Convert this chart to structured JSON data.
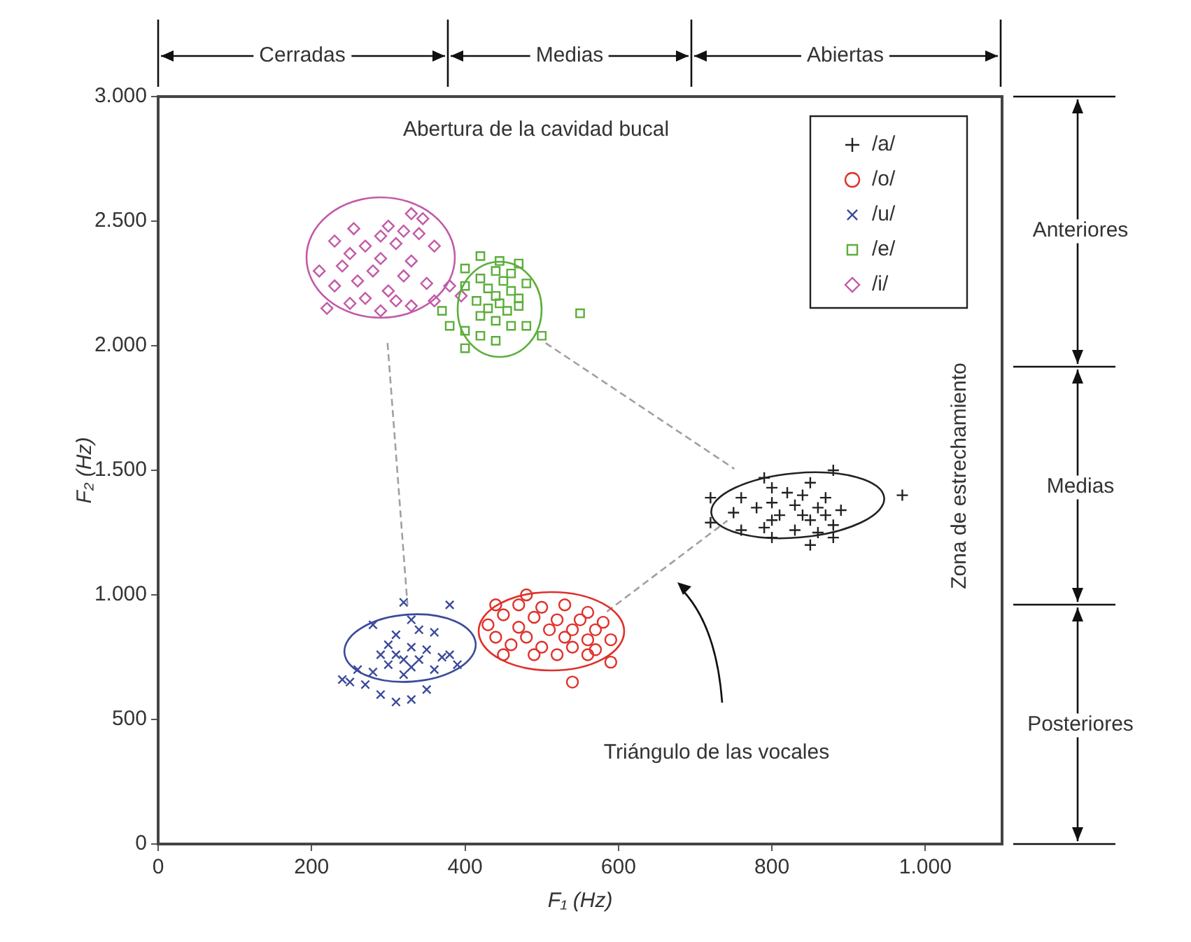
{
  "chart_data": {
    "type": "scatter",
    "xlabel": "F₁ (Hz)",
    "ylabel": "F₂ (Hz)",
    "xlim": [
      0,
      1100
    ],
    "ylim": [
      0,
      3000
    ],
    "xticks": [
      0,
      200,
      400,
      600,
      800,
      {
        "value": 1000,
        "label": "1.000"
      }
    ],
    "yticks": [
      0,
      500,
      {
        "value": 1000,
        "label": "1.000"
      },
      {
        "value": 1500,
        "label": "1.500"
      },
      {
        "value": 2000,
        "label": "2.000"
      },
      {
        "value": 2500,
        "label": "2.500"
      },
      {
        "value": 3000,
        "label": "3.000"
      }
    ],
    "grid": false,
    "legend": "top right",
    "annotations": [
      "Cerradas",
      "Medias",
      "Abiertas",
      "Abertura de la cavidad bucal",
      "Anteriores",
      "Medias",
      "Posteriores",
      "Zona de estrechamiento",
      "Triángulo de las vocales"
    ],
    "series": [
      {
        "name": "/a/",
        "type": "scatter",
        "marker": "plus",
        "color": "#222222",
        "x": [
          880,
          790,
          850,
          800,
          820,
          720,
          760,
          840,
          870,
          800,
          830,
          860,
          780,
          890,
          750,
          810,
          840,
          870,
          800,
          850,
          880,
          720,
          790,
          830,
          860,
          800,
          880,
          850,
          970,
          760
        ],
        "values": [
          1500,
          1470,
          1450,
          1430,
          1410,
          1390,
          1390,
          1400,
          1390,
          1370,
          1360,
          1350,
          1350,
          1340,
          1330,
          1320,
          1320,
          1320,
          1300,
          1300,
          1280,
          1290,
          1270,
          1260,
          1250,
          1230,
          1230,
          1200,
          1400,
          1260
        ]
      },
      {
        "name": "/o/",
        "type": "scatter",
        "marker": "circle",
        "color": "#e0302a",
        "x": [
          480,
          440,
          470,
          500,
          530,
          560,
          450,
          490,
          520,
          550,
          580,
          430,
          470,
          510,
          540,
          570,
          440,
          480,
          530,
          560,
          590,
          460,
          500,
          540,
          570,
          450,
          490,
          520,
          560,
          590,
          540
        ],
        "values": [
          1000,
          960,
          960,
          950,
          960,
          930,
          920,
          910,
          900,
          900,
          890,
          880,
          870,
          860,
          860,
          860,
          830,
          830,
          830,
          820,
          820,
          800,
          790,
          790,
          780,
          760,
          760,
          760,
          760,
          730,
          650
        ]
      },
      {
        "name": "/u/",
        "type": "scatter",
        "marker": "cross",
        "color": "#3b4a9b",
        "x": [
          320,
          380,
          330,
          280,
          340,
          310,
          360,
          300,
          330,
          350,
          290,
          310,
          320,
          340,
          370,
          380,
          300,
          330,
          360,
          390,
          280,
          320,
          250,
          270,
          240,
          290,
          310,
          330,
          350,
          260
        ],
        "values": [
          970,
          960,
          900,
          880,
          860,
          840,
          850,
          800,
          790,
          780,
          760,
          760,
          740,
          740,
          750,
          760,
          720,
          710,
          700,
          720,
          690,
          680,
          650,
          640,
          660,
          600,
          570,
          580,
          620,
          700
        ]
      },
      {
        "name": "/e/",
        "type": "scatter",
        "marker": "square",
        "color": "#5cae3c",
        "x": [
          420,
          445,
          470,
          400,
          440,
          460,
          420,
          450,
          480,
          400,
          430,
          460,
          440,
          470,
          415,
          445,
          470,
          430,
          455,
          420,
          440,
          460,
          480,
          370,
          400,
          420,
          440,
          500,
          400,
          550,
          380
        ],
        "values": [
          2360,
          2340,
          2330,
          2310,
          2300,
          2290,
          2270,
          2260,
          2250,
          2240,
          2230,
          2220,
          2200,
          2190,
          2180,
          2170,
          2160,
          2150,
          2140,
          2120,
          2100,
          2080,
          2080,
          2140,
          2060,
          2040,
          2020,
          2040,
          1990,
          2130,
          2080
        ]
      },
      {
        "name": "/i/",
        "type": "scatter",
        "marker": "diamond",
        "color": "#c25aa8",
        "x": [
          330,
          345,
          300,
          255,
          320,
          290,
          340,
          230,
          270,
          310,
          360,
          250,
          290,
          330,
          240,
          210,
          280,
          320,
          260,
          230,
          300,
          350,
          270,
          310,
          250,
          220,
          330,
          290,
          380,
          395,
          360
        ],
        "values": [
          2530,
          2510,
          2480,
          2470,
          2460,
          2440,
          2450,
          2420,
          2400,
          2410,
          2400,
          2370,
          2350,
          2340,
          2320,
          2300,
          2300,
          2280,
          2260,
          2240,
          2220,
          2250,
          2190,
          2180,
          2170,
          2150,
          2160,
          2140,
          2240,
          2200,
          2180
        ]
      },
      {
        "type": "line",
        "color": "#a0a0a0",
        "line_style": "dashed",
        "x": [
          299,
          325
        ],
        "values": [
          2011,
          960
        ]
      },
      {
        "type": "line",
        "color": "#a0a0a0",
        "line_style": "dashed",
        "x": [
          505,
          751
        ],
        "values": [
          2011,
          1506
        ]
      },
      {
        "type": "line",
        "color": "#a0a0a0",
        "line_style": "dashed",
        "x": [
          585,
          742
        ],
        "values": [
          933,
          1298
        ]
      }
    ]
  }
}
